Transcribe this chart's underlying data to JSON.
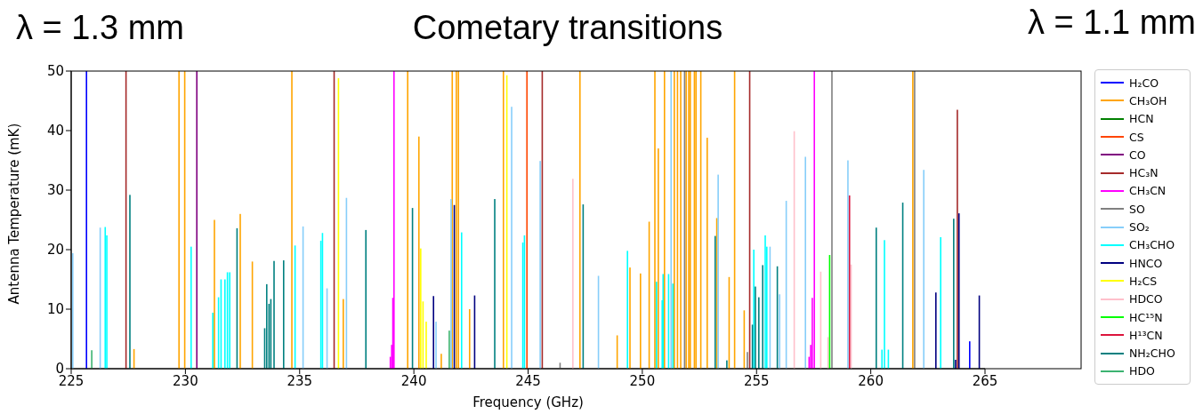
{
  "chart_data": {
    "type": "bar",
    "title": "Cometary transitions",
    "annotations": [
      "λ = 1.3 mm",
      "λ = 1.1 mm"
    ],
    "xlabel": "Frequency (GHz)",
    "ylabel": "Antenna Temperature (mK)",
    "xlim": [
      225,
      265
    ],
    "xticks": [
      225,
      230,
      235,
      240,
      245,
      250,
      255,
      260,
      265
    ],
    "ylim": [
      0,
      50
    ],
    "yticks": [
      0,
      10,
      20,
      30,
      40,
      50
    ],
    "legend": "right",
    "series": [
      {
        "name": "H₂CO",
        "color": "#0000ff",
        "x": [
          225.67,
          264.33
        ],
        "values": [
          50,
          4.6
        ]
      },
      {
        "name": "CH₃OH",
        "color": "#ffa500",
        "x": [
          227.75,
          229.72,
          229.97,
          231.27,
          232.4,
          232.93,
          234.66,
          236.91,
          239.73,
          240.22,
          241.2,
          241.68,
          241.86,
          241.95,
          242.44,
          243.92,
          247.27,
          248.9,
          249.46,
          249.92,
          250.3,
          250.55,
          250.7,
          250.97,
          251.4,
          251.54,
          251.68,
          251.92,
          252.03,
          252.1,
          252.28,
          252.35,
          252.56,
          252.84,
          253.26,
          253.8,
          254.04,
          254.46,
          261.84
        ],
        "values": [
          3.3,
          50,
          50,
          25,
          26,
          18,
          50,
          11.7,
          50,
          39,
          2.5,
          50,
          50,
          50,
          10,
          50,
          50,
          5.6,
          17,
          16,
          24.7,
          50,
          37,
          50,
          50,
          50,
          50,
          50,
          50,
          50,
          50,
          50,
          50,
          38.8,
          25.3,
          15.4,
          50,
          9.8,
          50
        ]
      },
      {
        "name": "HCN",
        "color": "#008000"
      },
      {
        "name": "CS",
        "color": "#ff4500",
        "x": [
          244.95
        ],
        "values": [
          50
        ]
      },
      {
        "name": "CO",
        "color": "#800080",
        "x": [
          230.5
        ],
        "values": [
          50
        ]
      },
      {
        "name": "HC₃N",
        "color": "#a52a2a",
        "x": [
          227.4,
          236.51,
          245.62,
          254.7,
          263.79
        ],
        "values": [
          50,
          50,
          50,
          50,
          43.5
        ]
      },
      {
        "name": "CH₃CN",
        "color": "#ff00ff",
        "x": [
          238.97,
          239.03,
          239.08,
          239.13,
          257.3,
          257.37,
          257.44,
          257.53
        ],
        "values": [
          2,
          4,
          11.9,
          50,
          2,
          4,
          11.9,
          50
        ]
      },
      {
        "name": "SO",
        "color": "#808080",
        "x": [
          246.4,
          251.85,
          254.6,
          258.3,
          261.92
        ],
        "values": [
          1,
          50,
          2.8,
          50,
          50
        ]
      },
      {
        "name": "SO₂",
        "color": "#87cefa",
        "x": [
          225.07,
          226.27,
          235.15,
          236.2,
          237.05,
          240.97,
          241.63,
          244.28,
          245.53,
          248.08,
          251.26,
          253.32,
          255.59,
          256.01,
          256.3,
          257.14,
          259.0,
          262.32
        ],
        "values": [
          19.4,
          23.7,
          23.9,
          13.5,
          28.7,
          7.9,
          28.5,
          44,
          34.9,
          15.6,
          50,
          32.6,
          20.5,
          12.5,
          28.2,
          35.6,
          35,
          33.4
        ]
      },
      {
        "name": "CH₃CHO",
        "color": "#00ffff",
        "x": [
          226.49,
          226.56,
          230.25,
          231.2,
          231.45,
          231.56,
          231.73,
          231.84,
          231.94,
          234.8,
          235.93,
          236.0,
          242.09,
          244.77,
          244.84,
          249.35,
          250.62,
          250.87,
          250.91,
          251.15,
          251.34,
          254.88,
          255.38,
          255.45,
          260.49,
          260.6,
          260.77,
          263.06
        ],
        "values": [
          23.8,
          22.4,
          20.5,
          9.4,
          12,
          15,
          15,
          16.2,
          16.2,
          20.7,
          21.5,
          22.8,
          22.9,
          21.2,
          22.4,
          19.8,
          14.6,
          11.5,
          15.9,
          15.9,
          14.3,
          20,
          22.4,
          20.5,
          3.2,
          21.6,
          3.2,
          22.1
        ]
      },
      {
        "name": "HNCO",
        "color": "#000080",
        "x": [
          240.86,
          241.77,
          242.66,
          262.85,
          263.71,
          263.86,
          264.75
        ],
        "values": [
          12.2,
          27.5,
          12.3,
          12.8,
          1.5,
          26.1,
          12.3
        ]
      },
      {
        "name": "H₂CS",
        "color": "#ffff00",
        "x": [
          236.7,
          240.3,
          240.4,
          240.54,
          244.07
        ],
        "values": [
          48.8,
          20.2,
          11.3,
          7.9,
          49.3
        ]
      },
      {
        "name": "HDCO",
        "color": "#ffc0cb",
        "x": [
          246.96,
          256.65,
          257.81,
          258.13,
          259.14
        ],
        "values": [
          31.9,
          39.9,
          16.3,
          5.3,
          17.5
        ]
      },
      {
        "name": "HC¹⁵N",
        "color": "#00ff00",
        "x": [
          258.2
        ],
        "values": [
          19.1
        ]
      },
      {
        "name": "H¹³CN",
        "color": "#dc143c",
        "x": [
          259.07
        ],
        "values": [
          29.1
        ]
      },
      {
        "name": "NH₂CHO",
        "color": "#008080",
        "x": [
          227.57,
          232.26,
          233.47,
          233.56,
          233.66,
          233.74,
          233.88,
          234.3,
          237.9,
          239.94,
          243.54,
          247.41,
          253.19,
          253.7,
          254.82,
          254.95,
          255.1,
          255.27,
          255.91,
          260.24,
          261.4,
          263.63
        ],
        "values": [
          29.2,
          23.6,
          6.8,
          14.2,
          10.9,
          11.7,
          18.1,
          18.2,
          23.3,
          27,
          28.5,
          27.6,
          22.3,
          1.4,
          7.4,
          13.8,
          12,
          17.4,
          17.2,
          23.7,
          27.9,
          25.2
        ]
      },
      {
        "name": "HDO",
        "color": "#3cb371",
        "x": [
          225.9,
          241.55
        ],
        "values": [
          3.1,
          6.4
        ]
      }
    ]
  }
}
